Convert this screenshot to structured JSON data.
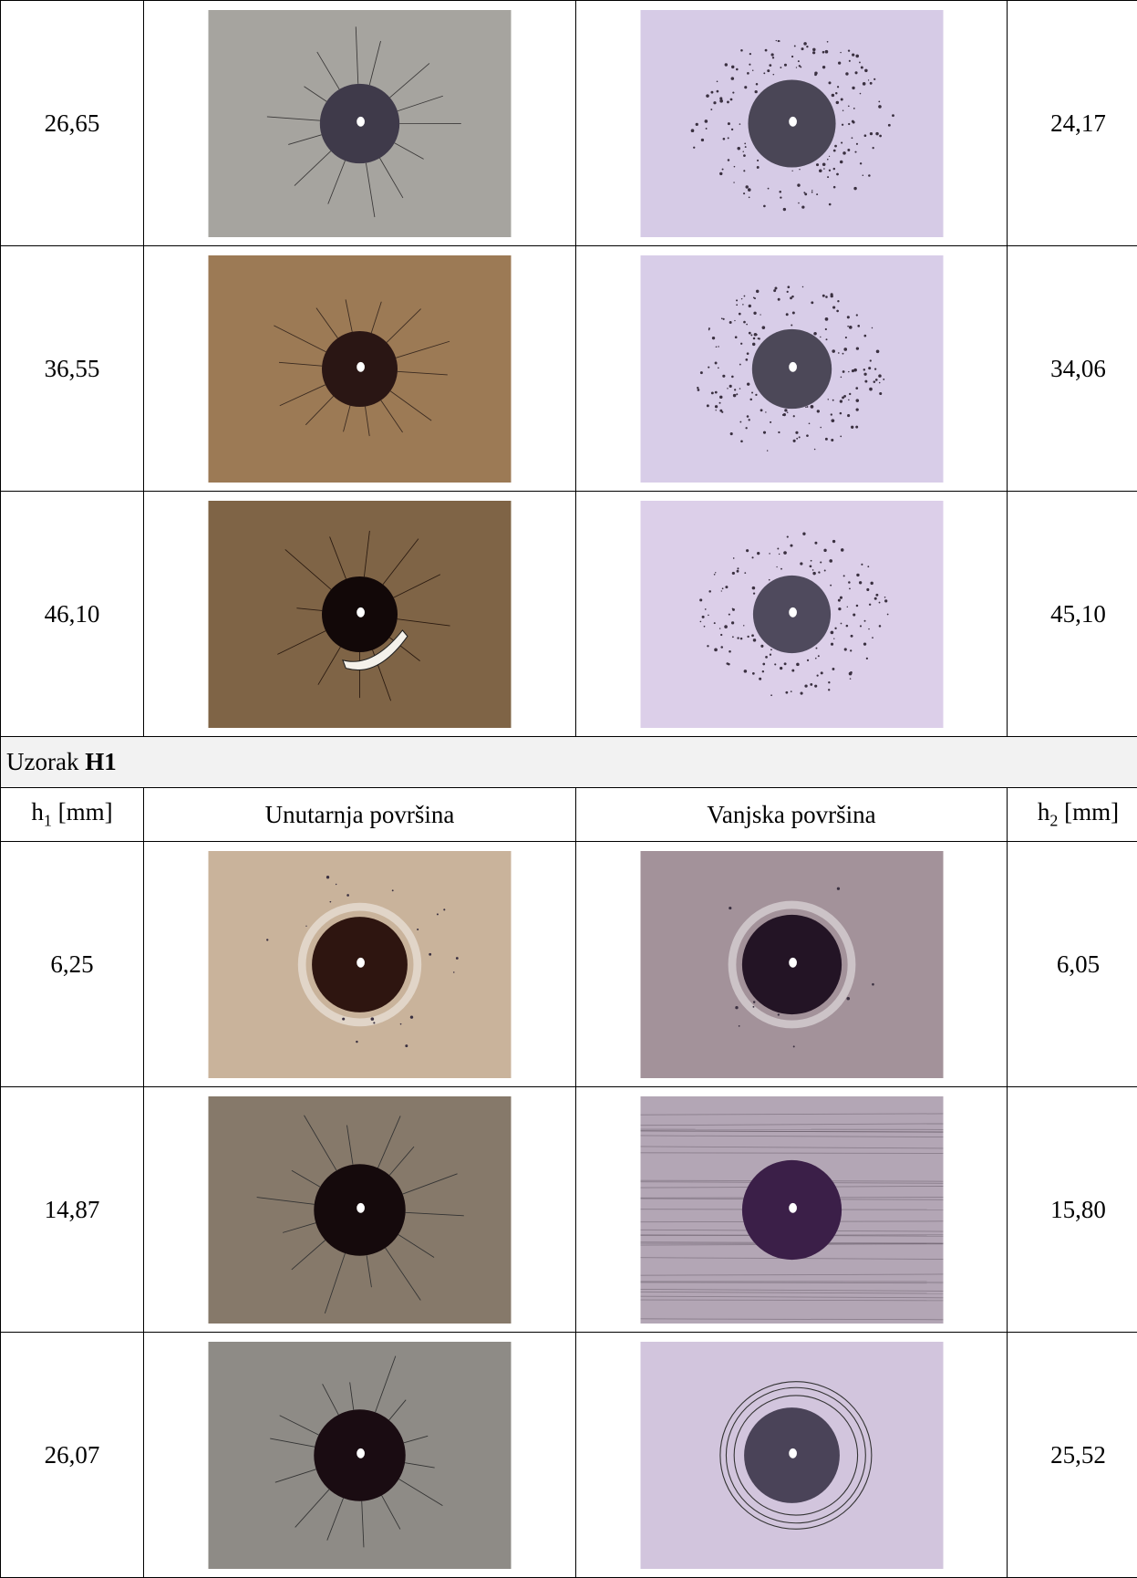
{
  "table": {
    "rows_top": [
      [
        "26,65",
        "24,17"
      ],
      [
        "36,55",
        "34,06"
      ],
      [
        "46,10",
        "45,10"
      ]
    ],
    "section": {
      "prefix": "Uzorak",
      "bold": "H1"
    },
    "header": {
      "h1": {
        "symbol": "h",
        "subscript": "1",
        "unit": "[mm]"
      },
      "inner": "Unutarnja površina",
      "outer": "Vanjska površina",
      "h2": {
        "symbol": "h",
        "subscript": "2",
        "unit": "[mm]"
      }
    },
    "rows": [
      [
        "6,25",
        "6,05"
      ],
      [
        "14,87",
        "15,80"
      ],
      [
        "26,07",
        "25,52"
      ]
    ]
  }
}
